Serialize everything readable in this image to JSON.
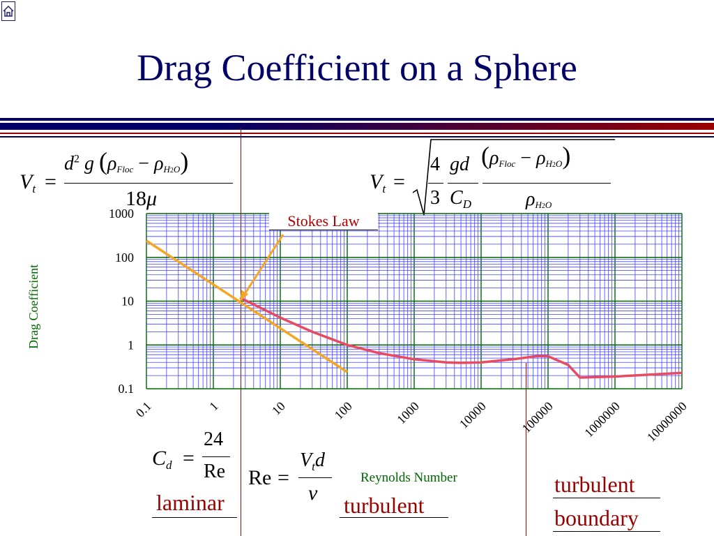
{
  "title": "Drag Coefficient on a Sphere",
  "colors": {
    "title": "#000066",
    "band_dark": "#000066",
    "band_red": "#990000",
    "grid": "#4040ff",
    "major_grid": "#006600",
    "drag_curve": "#e84a5f",
    "stokes_line": "#f5a623",
    "axis_label": "#006600",
    "regime_text": "#990000"
  },
  "icons": {
    "home": "home-icon"
  },
  "equations": {
    "vt_stokes": {
      "lhs": "V",
      "lhs_sub": "t",
      "eq": "=",
      "num": "d",
      "num_sup": "2",
      "num_g": "g",
      "lparen": "(",
      "rho": "ρ",
      "floc": "Floc",
      "minus": "−",
      "h2o": "H",
      "h2o_2": "2",
      "h2o_o": "O",
      "rparen": ")",
      "den_coef": "18",
      "den_mu": "μ"
    },
    "vt_general": {
      "lhs": "V",
      "lhs_sub": "t",
      "eq": "=",
      "n1": "4",
      "d1": "3",
      "n2": "gd",
      "d2": "C",
      "d2_sub": "D",
      "lparen": "(",
      "rho": "ρ",
      "floc": "Floc",
      "minus": "−",
      "h2o": "H",
      "h2o_2": "2",
      "h2o_o": "O",
      "rparen": ")",
      "den_rho": "ρ"
    },
    "cd_laminar": {
      "lhs": "C",
      "lhs_sub": "d",
      "eq": "=",
      "num": "24",
      "den": "Re"
    },
    "reynolds": {
      "lhs": "Re",
      "eq": "=",
      "num": "V",
      "num_sub": "t",
      "num_d": "d",
      "den": "ν"
    }
  },
  "regimes": {
    "laminar": "laminar",
    "turbulent": "turbulent",
    "turbulent_boundary_1": "turbulent",
    "turbulent_boundary_2": "boundary"
  },
  "annotation": "Stokes Law",
  "chart_data": {
    "type": "line",
    "xlabel": "Reynolds Number",
    "ylabel": "Drag Coefficient",
    "x_scale": "log",
    "y_scale": "log",
    "xlim": [
      0.1,
      10000000
    ],
    "ylim": [
      0.1,
      1000
    ],
    "x_ticks": [
      "0.1",
      "1",
      "10",
      "100",
      "1000",
      "10000",
      "100000",
      "1000000",
      "10000000"
    ],
    "y_ticks": [
      "1000",
      "100",
      "10",
      "1",
      "0.1"
    ],
    "grid": true,
    "series": [
      {
        "name": "",
        "color": "#e84a5f",
        "points": [
          [
            2.5,
            12
          ],
          [
            10,
            4.2
          ],
          [
            30,
            2.0
          ],
          [
            100,
            1.0
          ],
          [
            300,
            0.65
          ],
          [
            1000,
            0.47
          ],
          [
            3000,
            0.4
          ],
          [
            5000,
            0.39
          ],
          [
            10000,
            0.4
          ],
          [
            30000,
            0.47
          ],
          [
            70000,
            0.56
          ],
          [
            100000,
            0.55
          ],
          [
            200000,
            0.35
          ],
          [
            300000,
            0.18
          ],
          [
            1000000,
            0.19
          ],
          [
            10000000,
            0.23
          ]
        ]
      },
      {
        "name": "",
        "color": "#f5a623",
        "points": [
          [
            0.1,
            240
          ],
          [
            100,
            0.24
          ]
        ]
      }
    ],
    "annotations": [
      {
        "text": "Stokes Law",
        "arrow_to": [
          2.5,
          10
        ]
      }
    ]
  }
}
